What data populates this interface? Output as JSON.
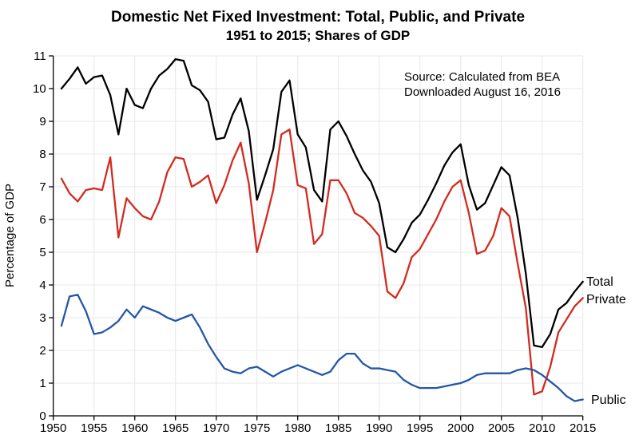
{
  "header": {
    "title": "Domestic Net Fixed Investment: Total, Public, and Private",
    "subtitle": "1951 to 2015; Shares of GDP"
  },
  "annotations": {
    "source_line1": "Source:  Calculated from BEA",
    "source_line2": "Downloaded August 16, 2016"
  },
  "chart_data": {
    "type": "line",
    "title": "Domestic Net Fixed Investment: Total, Public, and Private",
    "subtitle": "1951 to 2015; Shares of GDP",
    "xlabel": "",
    "ylabel": "Percentage of GDP",
    "xlim": [
      1950,
      2015
    ],
    "ylim": [
      0,
      11
    ],
    "xticks": [
      1950,
      1955,
      1960,
      1965,
      1970,
      1975,
      1980,
      1985,
      1990,
      1995,
      2000,
      2005,
      2010,
      2015
    ],
    "yticks": [
      0,
      1,
      2,
      3,
      4,
      5,
      6,
      7,
      8,
      9,
      10,
      11
    ],
    "grid": true,
    "legend_position": "labels-at-line-ends",
    "x": [
      1951,
      1952,
      1953,
      1954,
      1955,
      1956,
      1957,
      1958,
      1959,
      1960,
      1961,
      1962,
      1963,
      1964,
      1965,
      1966,
      1967,
      1968,
      1969,
      1970,
      1971,
      1972,
      1973,
      1974,
      1975,
      1976,
      1977,
      1978,
      1979,
      1980,
      1981,
      1982,
      1983,
      1984,
      1985,
      1986,
      1987,
      1988,
      1989,
      1990,
      1991,
      1992,
      1993,
      1994,
      1995,
      1996,
      1997,
      1998,
      1999,
      2000,
      2001,
      2002,
      2003,
      2004,
      2005,
      2006,
      2007,
      2008,
      2009,
      2010,
      2011,
      2012,
      2013,
      2014,
      2015
    ],
    "series": [
      {
        "name": "Total",
        "color": "#000000",
        "values": [
          10.0,
          10.3,
          10.65,
          10.15,
          10.35,
          10.4,
          9.8,
          8.6,
          10.0,
          9.5,
          9.4,
          10.0,
          10.4,
          10.6,
          10.9,
          10.85,
          10.1,
          9.95,
          9.6,
          8.45,
          8.5,
          9.2,
          9.7,
          8.7,
          6.6,
          7.35,
          8.15,
          9.9,
          10.25,
          8.6,
          8.2,
          6.9,
          6.55,
          8.75,
          9.0,
          8.55,
          8.0,
          7.5,
          7.15,
          6.5,
          5.15,
          5.0,
          5.4,
          5.9,
          6.15,
          6.6,
          7.1,
          7.65,
          8.05,
          8.3,
          7.05,
          6.3,
          6.5,
          7.05,
          7.6,
          7.35,
          6.05,
          4.35,
          2.15,
          2.1,
          2.5,
          3.25,
          3.45,
          3.8,
          4.1
        ]
      },
      {
        "name": "Private",
        "color": "#d22b20",
        "values": [
          7.25,
          6.8,
          6.55,
          6.9,
          6.95,
          6.9,
          7.9,
          5.45,
          6.65,
          6.35,
          6.1,
          6.0,
          6.55,
          7.45,
          7.9,
          7.85,
          7.0,
          7.15,
          7.35,
          6.5,
          7.05,
          7.8,
          8.35,
          7.1,
          5.0,
          5.9,
          6.9,
          8.6,
          8.75,
          7.05,
          6.95,
          5.25,
          5.55,
          7.2,
          7.2,
          6.8,
          6.2,
          6.05,
          5.8,
          5.5,
          3.8,
          3.6,
          4.05,
          4.85,
          5.1,
          5.55,
          6.0,
          6.55,
          7.0,
          7.2,
          6.2,
          4.95,
          5.05,
          5.5,
          6.35,
          6.1,
          4.65,
          3.3,
          0.65,
          0.75,
          1.5,
          2.55,
          2.95,
          3.35,
          3.6
        ]
      },
      {
        "name": "Public",
        "color": "#2457a7",
        "values": [
          2.75,
          3.65,
          3.7,
          3.2,
          2.5,
          2.55,
          2.7,
          2.9,
          3.25,
          3.0,
          3.35,
          3.25,
          3.15,
          3.0,
          2.9,
          3.0,
          3.1,
          2.7,
          2.2,
          1.8,
          1.45,
          1.35,
          1.3,
          1.45,
          1.5,
          1.35,
          1.2,
          1.35,
          1.45,
          1.55,
          1.45,
          1.35,
          1.25,
          1.35,
          1.7,
          1.9,
          1.9,
          1.6,
          1.45,
          1.45,
          1.4,
          1.35,
          1.1,
          0.95,
          0.85,
          0.85,
          0.85,
          0.9,
          0.95,
          1.0,
          1.1,
          1.25,
          1.3,
          1.3,
          1.3,
          1.3,
          1.4,
          1.45,
          1.4,
          1.25,
          1.05,
          0.85,
          0.6,
          0.45,
          0.5
        ]
      }
    ]
  }
}
